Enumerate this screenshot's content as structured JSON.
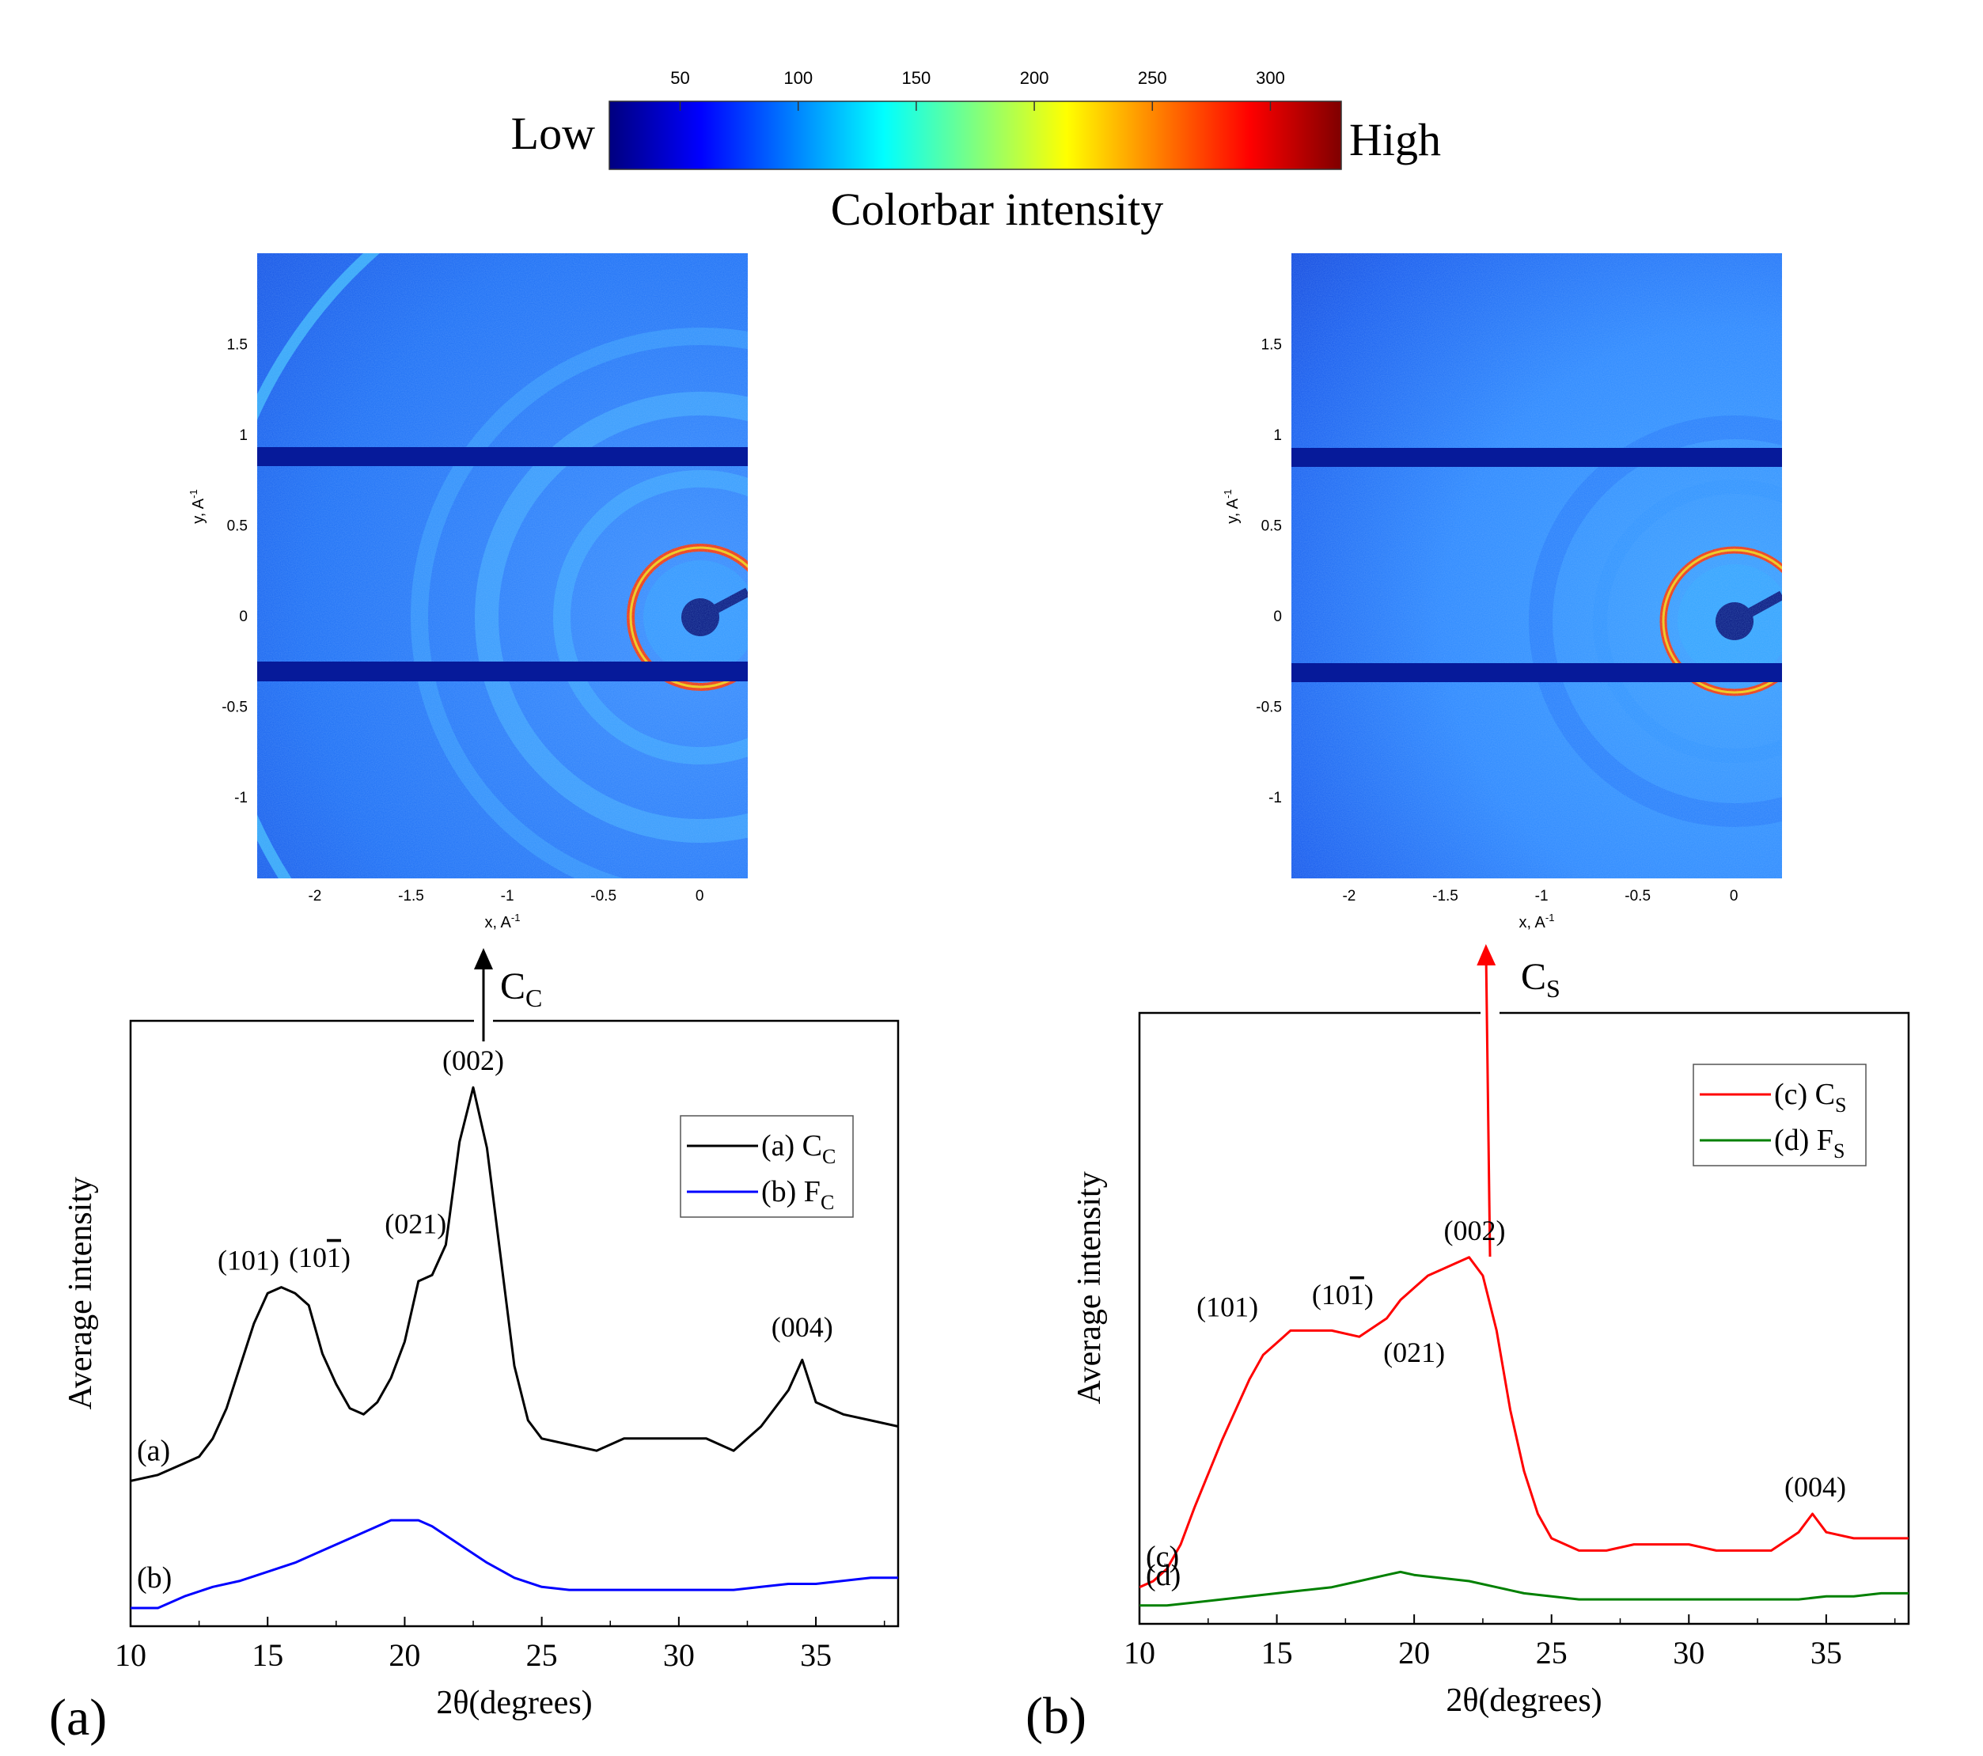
{
  "colorbar": {
    "ticks": [
      "50",
      "100",
      "150",
      "200",
      "250",
      "300"
    ],
    "tick_values": [
      50,
      100,
      150,
      200,
      250,
      300
    ],
    "range": [
      20,
      330
    ],
    "low_label": "Low",
    "high_label": "High",
    "title": "Colorbar intensity",
    "colors": [
      "#00007f",
      "#0000ff",
      "#007fff",
      "#00ffff",
      "#7fff7f",
      "#ffff00",
      "#ff7f00",
      "#ff0000",
      "#7f0000"
    ]
  },
  "maps": [
    {
      "xlabel": "x, A",
      "xlabel_sup": "-1",
      "ylabel": "y, A",
      "ylabel_sup": "-1",
      "xticks": [
        "-2",
        "-1.5",
        "-1",
        "-0.5",
        "0"
      ],
      "xtick_values": [
        -2,
        -1.5,
        -1,
        -0.5,
        0
      ],
      "yticks": [
        "1.5",
        "1",
        "0.5",
        "0",
        "-0.5",
        "-1"
      ],
      "ytick_values": [
        1.5,
        1,
        0.5,
        0,
        -0.5,
        -1
      ],
      "xlim": [
        -2.3,
        0.25
      ],
      "ylim": [
        -1.45,
        2.0
      ],
      "arrow_label_main": "C",
      "arrow_label_sub": "C",
      "arrow_color": "#000000"
    },
    {
      "xlabel": "x, A",
      "xlabel_sup": "-1",
      "ylabel": "y, A",
      "ylabel_sup": "-1",
      "xticks": [
        "-2",
        "-1.5",
        "-1",
        "-0.5",
        "0"
      ],
      "xtick_values": [
        -2,
        -1.5,
        -1,
        -0.5,
        0
      ],
      "yticks": [
        "1.5",
        "1",
        "0.5",
        "0",
        "-0.5",
        "-1"
      ],
      "ytick_values": [
        1.5,
        1,
        0.5,
        0,
        -0.5,
        -1
      ],
      "xlim": [
        -2.3,
        0.25
      ],
      "ylim": [
        -1.45,
        2.0
      ],
      "arrow_label_main": "C",
      "arrow_label_sub": "S",
      "arrow_color": "#ff0000"
    }
  ],
  "chart_data": [
    {
      "type": "line",
      "panel_label": "(a)",
      "xlabel": "2θ(degrees)",
      "ylabel": "Average intensity",
      "xlim": [
        10,
        38
      ],
      "ylim": [
        0,
        100
      ],
      "xticks": [
        10,
        15,
        20,
        25,
        30,
        35
      ],
      "xtick_labels": [
        "10",
        "15",
        "20",
        "25",
        "30",
        "35"
      ],
      "legend": [
        {
          "main": "(a) C",
          "sub": "C",
          "color": "#000000"
        },
        {
          "main": "(b) F",
          "sub": "C",
          "color": "#0000ff"
        }
      ],
      "legend_position": "top-right",
      "series": [
        {
          "name": "(a) CC",
          "color": "#000000",
          "label": "(a)",
          "x": [
            10,
            11,
            12,
            12.5,
            13,
            13.5,
            14,
            14.5,
            15,
            15.5,
            16,
            16.5,
            17,
            17.5,
            18,
            18.5,
            19,
            19.5,
            20,
            20.5,
            21,
            21.5,
            22,
            22.5,
            23,
            23.5,
            24,
            24.5,
            25,
            26,
            27,
            28,
            29,
            30,
            31,
            32,
            33,
            34,
            34.5,
            35,
            36,
            37,
            38
          ],
          "y": [
            24,
            25,
            27,
            28,
            31,
            36,
            43,
            50,
            55,
            56,
            55,
            53,
            45,
            40,
            36,
            35,
            37,
            41,
            47,
            57,
            58,
            63,
            80,
            89,
            79,
            61,
            43,
            34,
            31,
            30,
            29,
            31,
            31,
            31,
            31,
            29,
            33,
            39,
            44,
            37,
            35,
            34,
            33
          ]
        },
        {
          "name": "(b) FC",
          "color": "#0000ff",
          "label": "(b)",
          "x": [
            10,
            11,
            12,
            13,
            14,
            15,
            16,
            17,
            18,
            19,
            19.5,
            20,
            20.5,
            21,
            21.5,
            22,
            23,
            24,
            25,
            26,
            27,
            28,
            29,
            30,
            31,
            32,
            33,
            34,
            35,
            36,
            37,
            38
          ],
          "y": [
            3,
            3,
            5,
            6.5,
            7.5,
            9,
            10.5,
            12.5,
            14.5,
            16.5,
            17.5,
            17.5,
            17.5,
            16.5,
            15,
            13.5,
            10.5,
            8,
            6.5,
            6,
            6,
            6,
            6,
            6,
            6,
            6,
            6.5,
            7,
            7,
            7.5,
            8,
            8
          ]
        }
      ],
      "annotations": [
        {
          "text": "(002)",
          "x": 22.5,
          "y": 89
        },
        {
          "text": "(101)",
          "x": 14.3,
          "y": 56
        },
        {
          "text": "(10",
          "text_bar": "1",
          "text_end": ")",
          "x": 16.9,
          "y": 56.5
        },
        {
          "text": "(021)",
          "x": 20.4,
          "y": 62
        },
        {
          "text": "(004)",
          "x": 34.5,
          "y": 45
        }
      ]
    },
    {
      "type": "line",
      "panel_label": "(b)",
      "xlabel": "2θ(degrees)",
      "ylabel": "Average intensity",
      "xlim": [
        10,
        38
      ],
      "ylim": [
        0,
        100
      ],
      "xticks": [
        10,
        15,
        20,
        25,
        30,
        35
      ],
      "xtick_labels": [
        "10",
        "15",
        "20",
        "25",
        "30",
        "35"
      ],
      "legend": [
        {
          "main": "(c) C",
          "sub": "S",
          "color": "#ff0000"
        },
        {
          "main": "(d) F",
          "sub": "S",
          "color": "#008000"
        }
      ],
      "legend_position": "top-right",
      "series": [
        {
          "name": "(c) CS",
          "color": "#ff0000",
          "label": "(c)",
          "x": [
            10,
            10.5,
            11,
            11.5,
            12,
            13,
            14,
            14.5,
            15,
            15.5,
            16,
            17,
            18,
            19,
            19.5,
            20,
            20.5,
            21,
            21.5,
            22,
            22.5,
            23,
            23.5,
            24,
            24.5,
            25,
            26,
            27,
            28,
            29,
            30,
            31,
            32,
            33,
            34,
            34.5,
            35,
            36,
            37,
            38
          ],
          "y": [
            6,
            7,
            9,
            13,
            19,
            30,
            40,
            44,
            46,
            48,
            48,
            48,
            47,
            50,
            53,
            55,
            57,
            58,
            59,
            60,
            57,
            48,
            35,
            25,
            18,
            14,
            12,
            12,
            13,
            13,
            13,
            12,
            12,
            12,
            15,
            18,
            15,
            14,
            14,
            14
          ]
        },
        {
          "name": "(d) FS",
          "color": "#008000",
          "label": "(d)",
          "x": [
            10,
            11,
            12,
            13,
            14,
            15,
            16,
            17,
            18,
            19,
            19.5,
            20,
            21,
            22,
            23,
            24,
            25,
            26,
            27,
            28,
            29,
            30,
            31,
            32,
            33,
            34,
            35,
            36,
            37,
            38
          ],
          "y": [
            3,
            3,
            3.5,
            4,
            4.5,
            5,
            5.5,
            6,
            7,
            8,
            8.5,
            8,
            7.5,
            7,
            6,
            5,
            4.5,
            4,
            4,
            4,
            4,
            4,
            4,
            4,
            4,
            4,
            4.5,
            4.5,
            5,
            5
          ]
        }
      ],
      "annotations": [
        {
          "text": "(002)",
          "x": 22.2,
          "y": 60
        },
        {
          "text": "(101)",
          "x": 13.2,
          "y": 47.5
        },
        {
          "text": "(10",
          "text_bar": "1",
          "text_end": ")",
          "x": 17.4,
          "y": 49.5
        },
        {
          "text": "(021)",
          "x": 20,
          "y": 40
        },
        {
          "text": "(004)",
          "x": 34.6,
          "y": 18
        }
      ]
    }
  ]
}
